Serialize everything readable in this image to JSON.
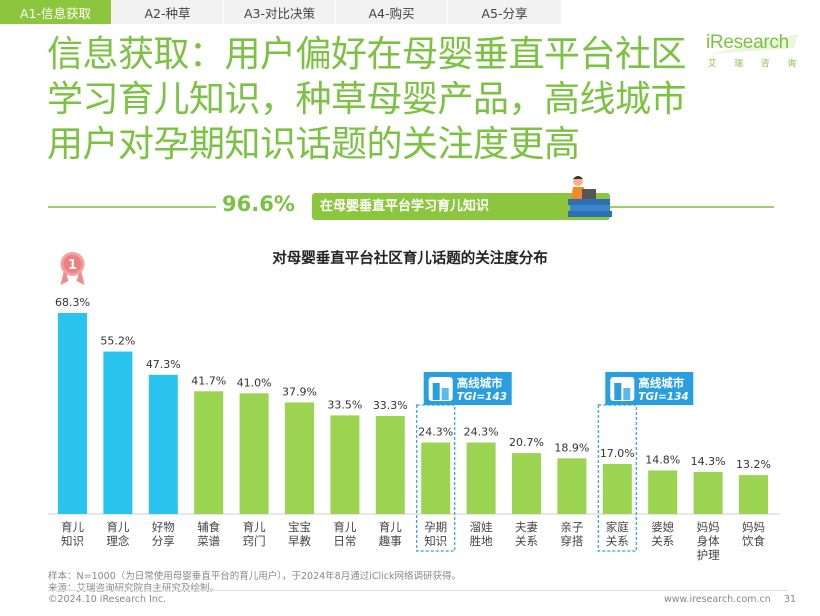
{
  "tabs": [
    {
      "label": "A1-信息获取",
      "active": true
    },
    {
      "label": "A2-种草",
      "active": false
    },
    {
      "label": "A3-对比决策",
      "active": false
    },
    {
      "label": "A4-购买",
      "active": false
    },
    {
      "label": "A5-分享",
      "active": false
    }
  ],
  "logo": {
    "main": "iResearch",
    "sub": [
      "艾",
      "瑞",
      "咨",
      "询"
    ]
  },
  "headline": {
    "lines": [
      "信息获取：用户偏好在母婴垂直平台社区",
      "学习育儿知识，种草母婴产品，高线城市",
      "用户对孕期知识话题的关注度更高"
    ]
  },
  "highlight": {
    "value": "96.6%",
    "text": "在母婴垂直平台学习育儿知识"
  },
  "colors": {
    "brand_green": "#7cc242",
    "bar_blue": "#29c3ef",
    "bar_green": "#9ad450",
    "callout_blue": "#2a9fe0"
  },
  "chart_data": {
    "type": "bar",
    "title": "对母婴垂直平台社区育儿话题的关注度分布",
    "categories": [
      "育儿\n知识",
      "育儿\n理念",
      "好物\n分享",
      "辅食\n菜谱",
      "育儿\n窍门",
      "宝宝\n早教",
      "育儿\n日常",
      "育儿\n趣事",
      "孕期\n知识",
      "溜娃\n胜地",
      "夫妻\n关系",
      "亲子\n穿搭",
      "家庭\n关系",
      "婆媳\n关系",
      "妈妈\n身体\n护理",
      "妈妈\n饮食"
    ],
    "values": [
      68.3,
      55.2,
      47.3,
      41.7,
      41.0,
      37.9,
      33.5,
      33.3,
      24.3,
      24.3,
      20.7,
      18.9,
      17.0,
      14.8,
      14.3,
      13.2
    ],
    "value_labels": [
      "68.3%",
      "55.2%",
      "47.3%",
      "41.7%",
      "41.0%",
      "37.9%",
      "33.5%",
      "33.3%",
      "24.3%",
      "24.3%",
      "20.7%",
      "18.9%",
      "17.0%",
      "14.8%",
      "14.3%",
      "13.2%"
    ],
    "top3_color": "#29c3ef",
    "rest_color": "#9ad450",
    "rank_badge": {
      "category_index": 0,
      "text": "1"
    },
    "callouts": [
      {
        "category_index": 8,
        "title": "高线城市",
        "tgi": "TGI=143"
      },
      {
        "category_index": 12,
        "title": "高线城市",
        "tgi": "TGI=134"
      }
    ],
    "ylim": [
      0,
      70
    ],
    "grid": false,
    "legend": "none"
  },
  "footnotes": {
    "sample": "样本：N=1000（为日常使用母婴垂直平台的育儿用户），于2024年8月通过iClick网络调研获得。",
    "source": "来源：艾瑞咨询研究院自主研究及绘制。"
  },
  "footer": {
    "copyright": "©2024.10 iResearch Inc.",
    "site": "www.iresearch.com.cn",
    "page": "31"
  }
}
